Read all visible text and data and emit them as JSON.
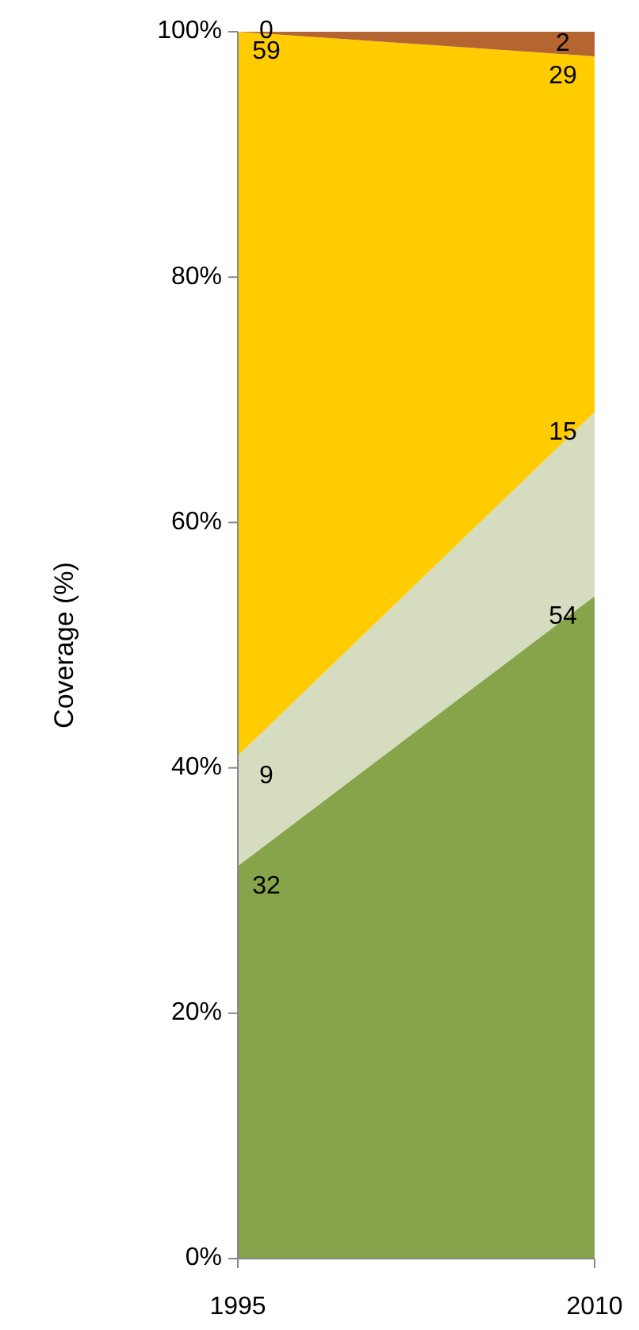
{
  "chart_data": {
    "type": "area",
    "stacked": true,
    "ylabel": "Coverage (%)",
    "x": [
      1995,
      2010
    ],
    "xlim": [
      1995,
      2010
    ],
    "xticks": [
      1995,
      2010
    ],
    "ylim": [
      0,
      100
    ],
    "yticks": [
      {
        "value": 0,
        "label": "0%"
      },
      {
        "value": 20,
        "label": "20%"
      },
      {
        "value": 40,
        "label": "40%"
      },
      {
        "value": 60,
        "label": "60%"
      },
      {
        "value": 80,
        "label": "80%"
      },
      {
        "value": 100,
        "label": "100%"
      }
    ],
    "grid": false,
    "series": [
      {
        "color": "#88a44a",
        "values": [
          32,
          54
        ],
        "value_labels": [
          "32",
          "54"
        ]
      },
      {
        "color": "#d5dcbf",
        "values": [
          9,
          15
        ],
        "value_labels": [
          "9",
          "15"
        ]
      },
      {
        "color": "#ffcc00",
        "values": [
          59,
          29
        ],
        "value_labels": [
          "59",
          "29"
        ]
      },
      {
        "color": "#b5652f",
        "values": [
          0,
          2
        ],
        "value_labels": [
          "0",
          "2"
        ]
      }
    ]
  }
}
